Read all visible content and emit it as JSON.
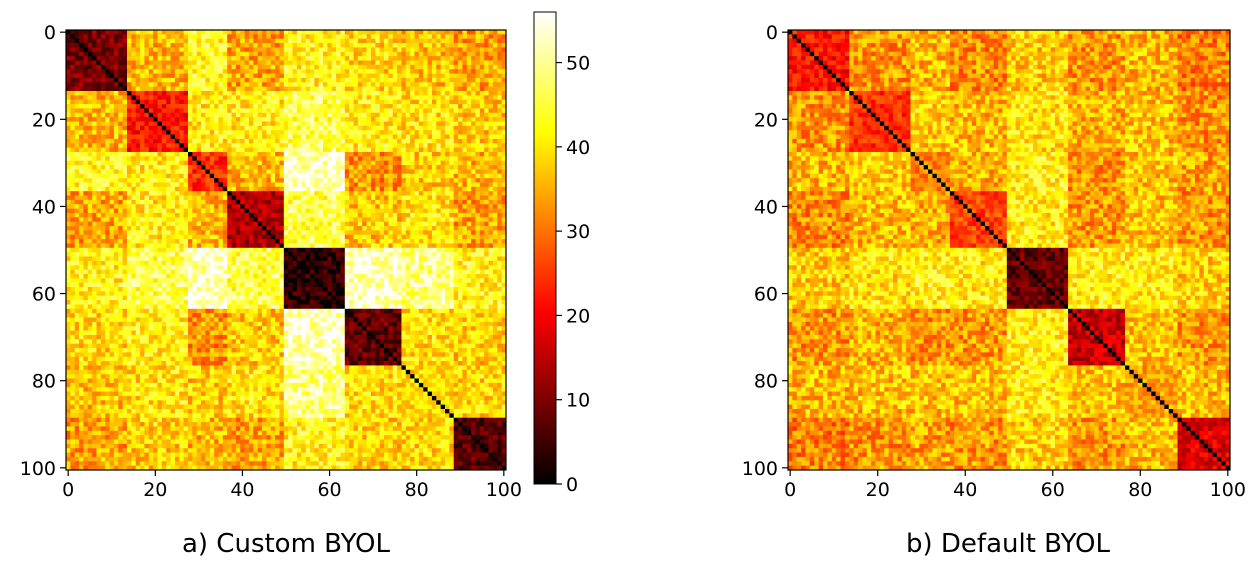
{
  "chart_data": [
    {
      "type": "heatmap",
      "caption": "a) Custom BYOL",
      "x_ticks": [
        "0",
        "20",
        "40",
        "60",
        "80",
        "100"
      ],
      "y_ticks": [
        "0",
        "20",
        "40",
        "60",
        "80",
        "100"
      ],
      "xlim": [
        0,
        100
      ],
      "ylim": [
        100,
        0
      ],
      "matrix_size": 101,
      "colormap": "hot",
      "colorbar": {
        "min": 0,
        "max": 56,
        "ticks": [
          "0",
          "10",
          "20",
          "30",
          "40",
          "50"
        ]
      },
      "diagonal_value": 0,
      "blocks": [
        {
          "start": 0,
          "end": 14,
          "within": 10
        },
        {
          "start": 14,
          "end": 28,
          "within": 22
        },
        {
          "start": 28,
          "end": 37,
          "within": 24
        },
        {
          "start": 37,
          "end": 50,
          "within": 14
        },
        {
          "start": 50,
          "end": 64,
          "within": 4
        },
        {
          "start": 64,
          "end": 77,
          "within": 8
        },
        {
          "start": 77,
          "end": 89,
          "within": 38
        },
        {
          "start": 89,
          "end": 101,
          "within": 7
        }
      ],
      "between": [
        [
          10,
          36,
          43,
          34,
          42,
          39,
          37,
          34
        ],
        [
          36,
          22,
          41,
          41,
          46,
          41,
          40,
          38
        ],
        [
          43,
          41,
          24,
          36,
          53,
          33,
          38,
          36
        ],
        [
          34,
          41,
          36,
          14,
          46,
          37,
          40,
          34
        ],
        [
          42,
          46,
          53,
          46,
          4,
          53,
          49,
          42
        ],
        [
          39,
          41,
          33,
          37,
          53,
          8,
          40,
          38
        ],
        [
          37,
          40,
          38,
          40,
          49,
          40,
          38,
          39
        ],
        [
          34,
          38,
          36,
          34,
          42,
          38,
          39,
          7
        ]
      ]
    },
    {
      "type": "heatmap",
      "caption": "b) Default BYOL",
      "x_ticks": [
        "0",
        "20",
        "40",
        "60",
        "80",
        "100"
      ],
      "y_ticks": [
        "0",
        "20",
        "40",
        "60",
        "80",
        "100"
      ],
      "xlim": [
        0,
        100
      ],
      "ylim": [
        100,
        0
      ],
      "matrix_size": 101,
      "colormap": "hot",
      "color_range": [
        0,
        56
      ],
      "diagonal_value": 0,
      "blocks": [
        {
          "start": 0,
          "end": 14,
          "within": 22
        },
        {
          "start": 14,
          "end": 28,
          "within": 24
        },
        {
          "start": 28,
          "end": 37,
          "within": 31
        },
        {
          "start": 37,
          "end": 50,
          "within": 26
        },
        {
          "start": 50,
          "end": 64,
          "within": 8
        },
        {
          "start": 64,
          "end": 77,
          "within": 16
        },
        {
          "start": 77,
          "end": 89,
          "within": 34
        },
        {
          "start": 89,
          "end": 101,
          "within": 18
        }
      ],
      "between": [
        [
          22,
          33,
          36,
          32,
          38,
          33,
          36,
          31
        ],
        [
          33,
          24,
          38,
          36,
          40,
          35,
          37,
          33
        ],
        [
          36,
          38,
          31,
          35,
          42,
          33,
          37,
          34
        ],
        [
          32,
          36,
          35,
          26,
          41,
          33,
          37,
          33
        ],
        [
          38,
          40,
          42,
          41,
          8,
          42,
          41,
          38
        ],
        [
          33,
          35,
          33,
          33,
          42,
          16,
          37,
          33
        ],
        [
          36,
          37,
          37,
          37,
          41,
          37,
          34,
          36
        ],
        [
          31,
          33,
          34,
          33,
          38,
          33,
          36,
          18
        ]
      ]
    }
  ]
}
